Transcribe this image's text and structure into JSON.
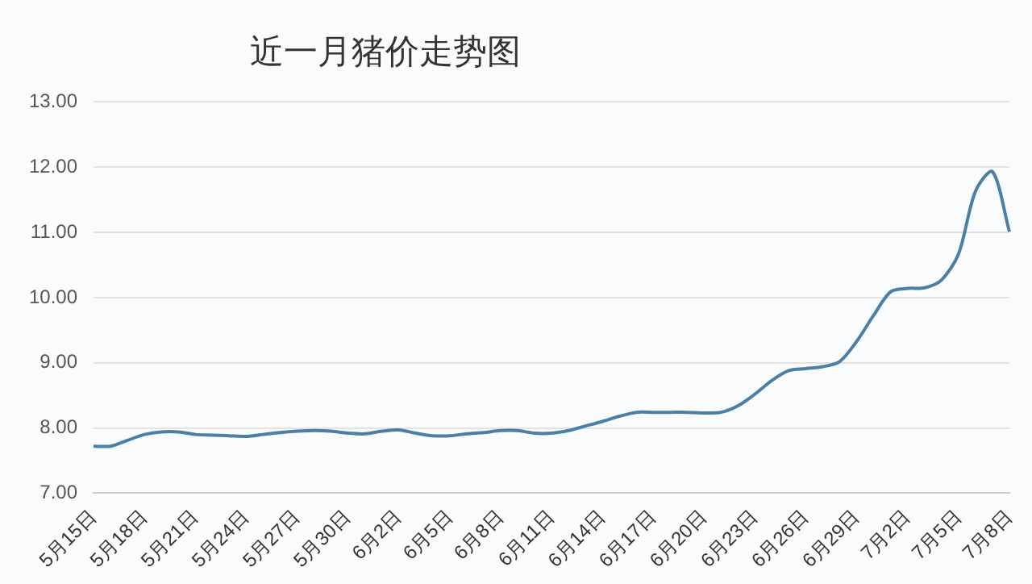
{
  "chart_data": {
    "type": "line",
    "title": "近一月猪价走势图",
    "categories": [
      "5月15日",
      null,
      null,
      "5月18日",
      null,
      null,
      "5月21日",
      null,
      null,
      "5月24日",
      null,
      null,
      "5月27日",
      null,
      null,
      "5月30日",
      null,
      null,
      "6月2日",
      null,
      null,
      "6月5日",
      null,
      null,
      "6月8日",
      null,
      null,
      "6月11日",
      null,
      null,
      "6月14日",
      null,
      null,
      "6月17日",
      null,
      null,
      "6月20日",
      null,
      null,
      "6月23日",
      null,
      null,
      "6月26日",
      null,
      null,
      "6月29日",
      null,
      null,
      "7月2日",
      null,
      null,
      "7月5日",
      null,
      null,
      "7月8日"
    ],
    "series": [
      {
        "color": "#4a7fa8",
        "values": [
          7.72,
          7.72,
          7.81,
          7.9,
          7.94,
          7.94,
          7.9,
          7.89,
          7.88,
          7.87,
          7.9,
          7.93,
          7.95,
          7.96,
          7.95,
          7.92,
          7.91,
          7.95,
          7.97,
          7.92,
          7.88,
          7.88,
          7.91,
          7.93,
          7.96,
          7.96,
          7.92,
          7.92,
          7.96,
          8.03,
          8.1,
          8.18,
          8.24,
          8.24,
          8.24,
          8.24,
          8.23,
          8.24,
          8.34,
          8.52,
          8.73,
          8.88,
          8.91,
          8.94,
          9.02,
          9.33,
          9.73,
          10.09,
          10.14,
          10.15,
          10.27,
          10.67,
          11.63,
          11.93,
          11.01
        ]
      }
    ],
    "ylim": [
      7,
      13
    ],
    "yticks": [
      {
        "value": 7,
        "label": "7.00"
      },
      {
        "value": 8,
        "label": "8.00"
      },
      {
        "value": 9,
        "label": "9.00"
      },
      {
        "value": 10,
        "label": "10.00"
      },
      {
        "value": 11,
        "label": "11.00"
      },
      {
        "value": 12,
        "label": "12.00"
      },
      {
        "value": 13,
        "label": "13.00"
      }
    ],
    "grid": "y",
    "legend": false,
    "marker": "none",
    "line_style": "solid"
  }
}
